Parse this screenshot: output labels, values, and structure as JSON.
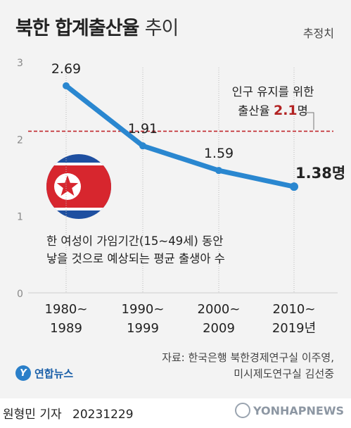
{
  "title_main": "북한 합계출산율",
  "title_sub": "추이",
  "estimate_label": "추정치",
  "note_lines": [
    "한 여성이 가임기간(15~49세) 동안",
    "낳을 것으로 예상되는 평균 출생아 수"
  ],
  "replacement": {
    "line1": "인구 유지를 위한",
    "line2_prefix": "출산율",
    "value_label": "2.1",
    "unit": "명",
    "value": 2.1,
    "color": "#c0272d"
  },
  "source_lines": [
    "자료: 한국은행 북한경제연구실 이주영,",
    "미시제도연구실 김선중"
  ],
  "logo_mark": "Y",
  "logo_text": "연합뉴스",
  "reporter": "원형민 기자",
  "date": "20231229",
  "brand": "YONHAPNEWS",
  "colors": {
    "line": "#2a87d0",
    "grid": "#bbbbbb",
    "reference": "#c0272d",
    "card_bg": "#f3f3f3"
  },
  "chart_data": {
    "type": "line",
    "categories": [
      [
        "1980~",
        "1989"
      ],
      [
        "1990~",
        "1999"
      ],
      [
        "2000~",
        "2009"
      ],
      [
        "2010~",
        "2019년"
      ]
    ],
    "values": [
      2.69,
      1.91,
      1.59,
      1.38
    ],
    "value_labels": [
      "2.69",
      "1.91",
      "1.59",
      "1.38명"
    ],
    "ylim": [
      0,
      3
    ],
    "yticks": [
      0,
      1,
      2,
      3
    ],
    "reference_line": 2.1,
    "grid": "vertical-dashed"
  }
}
